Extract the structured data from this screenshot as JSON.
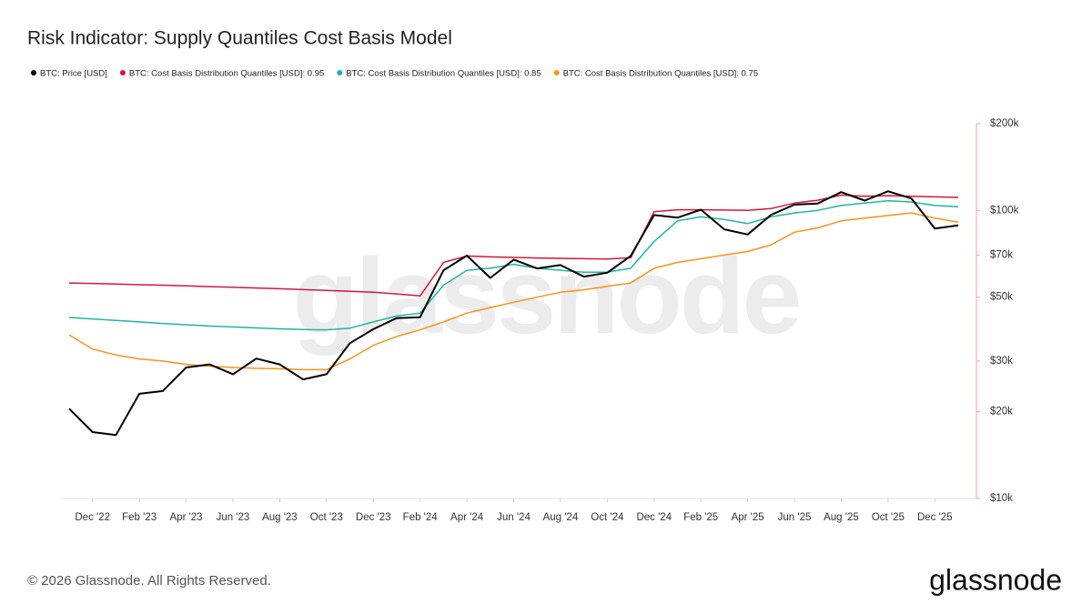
{
  "chart_data": {
    "type": "line",
    "title": "Risk Indicator: Supply Quantiles Cost Basis Model",
    "watermark": "glassnode",
    "log_scale": true,
    "x": [
      "2022-11",
      "2022-12",
      "2023-01",
      "2023-02",
      "2023-03",
      "2023-04",
      "2023-05",
      "2023-06",
      "2023-07",
      "2023-08",
      "2023-09",
      "2023-10",
      "2023-11",
      "2023-12",
      "2024-01",
      "2024-02",
      "2024-03",
      "2024-04",
      "2024-05",
      "2024-06",
      "2024-07",
      "2024-08",
      "2024-09",
      "2024-10",
      "2024-11",
      "2024-12",
      "2025-01",
      "2025-02",
      "2025-03",
      "2025-04",
      "2025-05",
      "2025-06",
      "2025-07",
      "2025-08",
      "2025-09",
      "2025-10",
      "2025-11",
      "2025-12",
      "2026-01"
    ],
    "xlim": [
      "2022-11",
      "2026-01"
    ],
    "xticks": [
      {
        "value": "2022-12",
        "label": "Dec '22"
      },
      {
        "value": "2023-02",
        "label": "Feb '23"
      },
      {
        "value": "2023-04",
        "label": "Apr '23"
      },
      {
        "value": "2023-06",
        "label": "Jun '23"
      },
      {
        "value": "2023-08",
        "label": "Aug '23"
      },
      {
        "value": "2023-10",
        "label": "Oct '23"
      },
      {
        "value": "2023-12",
        "label": "Dec '23"
      },
      {
        "value": "2024-02",
        "label": "Feb '24"
      },
      {
        "value": "2024-04",
        "label": "Apr '24"
      },
      {
        "value": "2024-06",
        "label": "Jun '24"
      },
      {
        "value": "2024-08",
        "label": "Aug '24"
      },
      {
        "value": "2024-10",
        "label": "Oct '24"
      },
      {
        "value": "2024-12",
        "label": "Dec '24"
      },
      {
        "value": "2025-02",
        "label": "Feb '25"
      },
      {
        "value": "2025-04",
        "label": "Apr '25"
      },
      {
        "value": "2025-06",
        "label": "Jun '25"
      },
      {
        "value": "2025-08",
        "label": "Aug '25"
      },
      {
        "value": "2025-10",
        "label": "Oct '25"
      },
      {
        "value": "2025-12",
        "label": "Dec '25"
      }
    ],
    "ylim": [
      10000,
      200000
    ],
    "yticks": [
      {
        "value": 10000,
        "label": "$10k"
      },
      {
        "value": 20000,
        "label": "$20k"
      },
      {
        "value": 30000,
        "label": "$30k"
      },
      {
        "value": 50000,
        "label": "$50k"
      },
      {
        "value": 70000,
        "label": "$70k"
      },
      {
        "value": 100000,
        "label": "$100k"
      },
      {
        "value": 200000,
        "label": "$200k"
      }
    ],
    "series": [
      {
        "name": "BTC: Price [USD]",
        "color": "#000000",
        "values": [
          20500,
          17000,
          16600,
          23100,
          23600,
          28500,
          29200,
          27000,
          30600,
          29200,
          25900,
          27000,
          34600,
          38700,
          42300,
          42600,
          62000,
          69700,
          58300,
          67500,
          62900,
          64600,
          58900,
          60800,
          69500,
          96400,
          94400,
          100600,
          86000,
          82500,
          96500,
          104700,
          105700,
          115800,
          108200,
          116500,
          110000,
          86500,
          88700
        ]
      },
      {
        "name": "BTC: Cost Basis Distribution Quantiles [USD]: 0.95",
        "color": "#d1173d",
        "values": [
          56000,
          55800,
          55500,
          55200,
          55000,
          54700,
          54400,
          54100,
          53800,
          53500,
          53100,
          52800,
          52400,
          52000,
          51300,
          50500,
          66000,
          69500,
          69000,
          68700,
          68400,
          68200,
          68000,
          67800,
          68500,
          99000,
          100500,
          100500,
          100300,
          100000,
          101500,
          106000,
          108500,
          113000,
          112000,
          112500,
          112000,
          111500,
          111000
        ]
      },
      {
        "name": "BTC: Cost Basis Distribution Quantiles [USD]: 0.85",
        "color": "#1fb5a0",
        "values": [
          42500,
          42000,
          41500,
          41000,
          40500,
          40100,
          39700,
          39400,
          39100,
          38800,
          38600,
          38500,
          39000,
          41000,
          43000,
          44000,
          55000,
          62000,
          63000,
          65000,
          63000,
          62000,
          61000,
          61000,
          63000,
          78000,
          92000,
          95000,
          93000,
          90000,
          95000,
          98000,
          100000,
          104000,
          106000,
          108000,
          107000,
          104000,
          103000
        ]
      },
      {
        "name": "BTC: Cost Basis Distribution Quantiles [USD]: 0.75",
        "color": "#f7931a",
        "values": [
          37000,
          33000,
          31500,
          30500,
          30000,
          29200,
          28800,
          28500,
          28300,
          28200,
          28000,
          28000,
          30500,
          34000,
          36500,
          38500,
          41000,
          44000,
          46000,
          48000,
          50000,
          52000,
          53000,
          54500,
          56000,
          63000,
          66000,
          68000,
          70000,
          72000,
          76000,
          84000,
          87000,
          92000,
          94000,
          96000,
          98000,
          94000,
          91000
        ]
      }
    ]
  },
  "footer": {
    "copyright": "© 2026 Glassnode. All Rights Reserved.",
    "logo": "glassnode"
  }
}
